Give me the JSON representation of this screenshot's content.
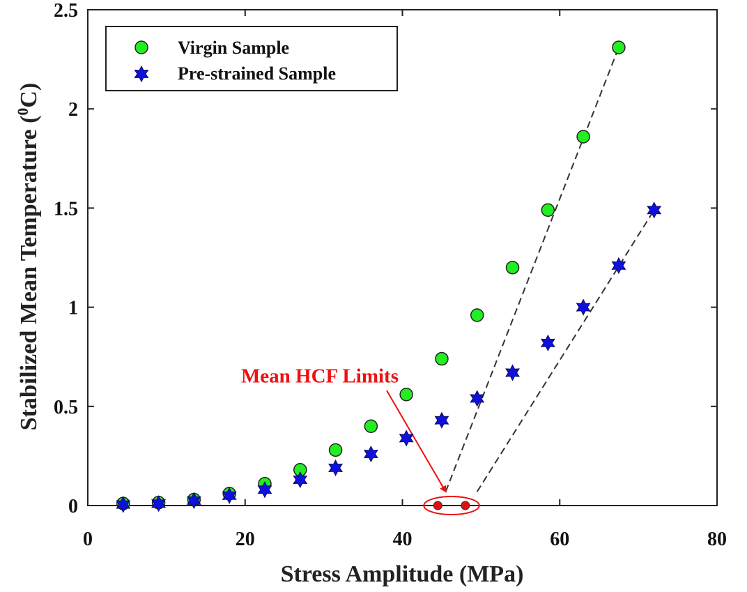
{
  "chart_data": {
    "type": "scatter",
    "xlabel": "Stress Amplitude (MPa)",
    "ylabel_main": "Stabilized Mean Temperature (",
    "ylabel_sup": "0",
    "ylabel_unit": "C)",
    "xlim": [
      0,
      80
    ],
    "ylim": [
      0,
      2.5
    ],
    "xticks": [
      {
        "value": 0,
        "label": "0"
      },
      {
        "value": 20,
        "label": "20"
      },
      {
        "value": 40,
        "label": "40"
      },
      {
        "value": 60,
        "label": "60"
      },
      {
        "value": 80,
        "label": "80"
      }
    ],
    "yticks": [
      {
        "value": 0,
        "label": "0"
      },
      {
        "value": 0.5,
        "label": "0.5"
      },
      {
        "value": 1,
        "label": "1"
      },
      {
        "value": 1.5,
        "label": "1.5"
      },
      {
        "value": 2,
        "label": "2"
      },
      {
        "value": 2.5,
        "label": "2.5"
      }
    ],
    "grid": false,
    "legend_position": "top-left",
    "series": [
      {
        "name": "Virgin Sample",
        "marker": "circle",
        "color": "#22ee22",
        "x": [
          4.5,
          9.0,
          13.5,
          18.0,
          22.5,
          27.0,
          31.5,
          36.0,
          40.5,
          45.0,
          49.5,
          54.0,
          58.5,
          63.0,
          67.5
        ],
        "y": [
          0.01,
          0.015,
          0.03,
          0.06,
          0.11,
          0.18,
          0.28,
          0.4,
          0.56,
          0.74,
          0.96,
          1.2,
          1.49,
          1.86,
          2.31
        ]
      },
      {
        "name": "Pre-strained Sample",
        "marker": "hexagram",
        "color": "#1010dd",
        "x": [
          4.5,
          9.0,
          13.5,
          18.0,
          22.5,
          27.0,
          31.5,
          36.0,
          40.5,
          45.0,
          49.5,
          54.0,
          58.5,
          63.0,
          67.5,
          72.0
        ],
        "y": [
          0.005,
          0.01,
          0.025,
          0.05,
          0.08,
          0.13,
          0.19,
          0.26,
          0.34,
          0.43,
          0.54,
          0.67,
          0.82,
          1.0,
          1.21,
          1.49
        ]
      }
    ],
    "fit_lines": [
      {
        "from": [
          45.5,
          0.07
        ],
        "to": [
          67.5,
          2.31
        ]
      },
      {
        "from": [
          49.5,
          0.07
        ],
        "to": [
          72.0,
          1.49
        ]
      }
    ],
    "hcf_limit_points": {
      "color": "#dd1111",
      "x": [
        44.5,
        48.0
      ],
      "y": [
        0,
        0
      ]
    },
    "annotation": {
      "text": "Mean HCF Limits",
      "color": "#ee1111",
      "text_at": [
        29.5,
        0.62
      ],
      "arrow_from": [
        38.0,
        0.58
      ],
      "arrow_to": [
        45.5,
        0.07
      ]
    }
  }
}
